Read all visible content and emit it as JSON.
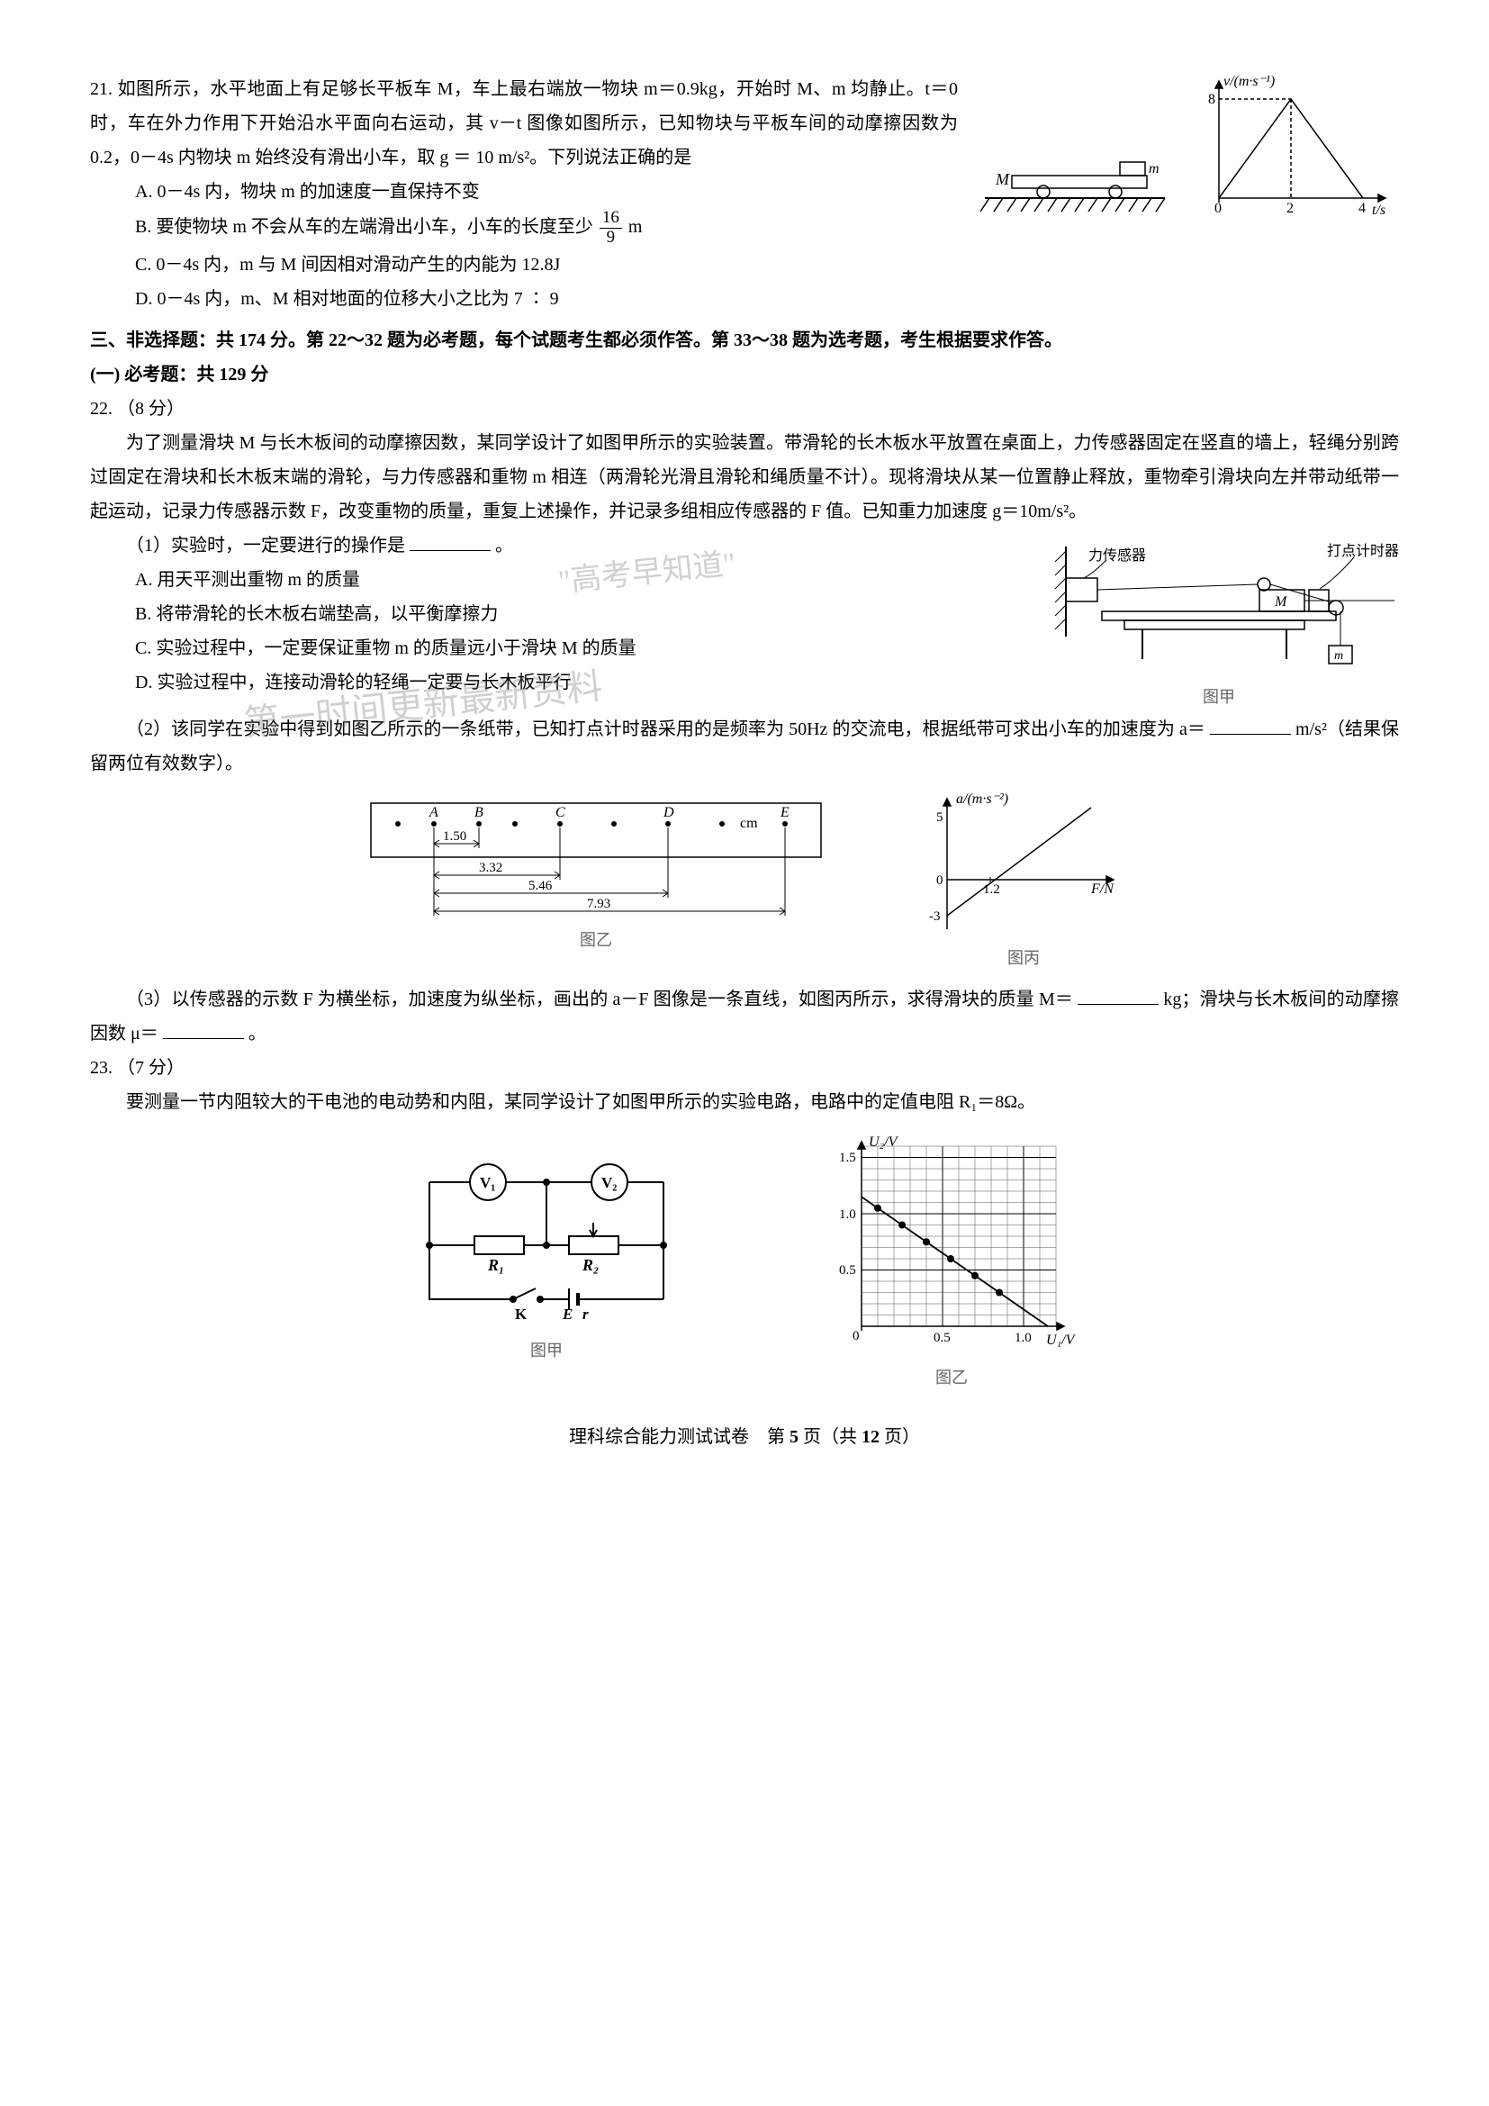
{
  "q21": {
    "num": "21.",
    "stem1": "如图所示，水平地面上有足够长平板车 M，车上最右端放一物块 m＝0.9kg，开始时 M、m 均静止。t＝0时，车在外力作用下开始沿水平面向右运动，其 v－t 图像如图所示，已知物块与平板车间的动摩擦因数为 0.2，0－4s 内物块 m 始终没有滑出小车，取 g ＝ 10 m/s²。下列说法正确的是",
    "opts": {
      "A": "A. 0－4s 内，物块 m 的加速度一直保持不变",
      "B_pre": "B. 要使物块 m 不会从车的左端滑出小车，小车的长度至少",
      "B_frac_num": "16",
      "B_frac_den": "9",
      "B_tail": " m",
      "C": "C. 0－4s 内，m 与 M 间因相对滑动产生的内能为 12.8J",
      "D": "D. 0－4s 内，m、M 相对地面的位移大小之比为 7 ∶ 9"
    },
    "diagram_cart": {
      "M": "M",
      "m": "m"
    },
    "chart": {
      "type": "line",
      "xlabel": "t/s",
      "ylabel": "v/(m·s⁻¹)",
      "x_ticks": [
        "0",
        "2",
        "4"
      ],
      "y_ticks": [
        "8"
      ],
      "points": [
        [
          0,
          0
        ],
        [
          2,
          8
        ],
        [
          4,
          0
        ]
      ],
      "xlim": [
        0,
        5
      ],
      "ylim": [
        0,
        9
      ],
      "line_color": "#000000",
      "axis_color": "#000000",
      "dash_color": "#000000",
      "background": "#ffffff"
    }
  },
  "section3": {
    "title": "三、非选择题：共 174 分。第 22～32 题为必考题，每个试题考生都必须作答。第 33～38 题为选考题，考生根据要求作答。",
    "sub": "(一) 必考题：共 129 分"
  },
  "q22": {
    "num": "22.",
    "points": "（8 分）",
    "p1": "为了测量滑块 M 与长木板间的动摩擦因数，某同学设计了如图甲所示的实验装置。带滑轮的长木板水平放置在桌面上，力传感器固定在竖直的墙上，轻绳分别跨过固定在滑块和长木板末端的滑轮，与力传感器和重物 m 相连（两滑轮光滑且滑轮和绳质量不计）。现将滑块从某一位置静止释放，重物牵引滑块向左并带动纸带一起运动，记录力传感器示数 F，改变重物的质量，重复上述操作，并记录多组相应传感器的 F 值。已知重力加速度 g＝10m/s²。",
    "s1_label": "（1）实验时，一定要进行的操作是",
    "s1_tail": "。",
    "opts": {
      "A": "A. 用天平测出重物 m 的质量",
      "B": "B. 将带滑轮的长木板右端垫高，以平衡摩擦力",
      "C": "C. 实验过程中，一定要保证重物 m 的质量远小于滑块 M 的质量",
      "D": "D. 实验过程中，连接动滑轮的轻绳一定要与长木板平行"
    },
    "s2": "（2）该同学在实验中得到如图乙所示的一条纸带，已知打点计时器采用的是频率为 50Hz 的交流电，根据纸带可求出小车的加速度为 a＝",
    "s2_tail": " m/s²（结果保留两位有效数字）。",
    "tape": {
      "labels": [
        "A",
        "B",
        "C",
        "D",
        "E"
      ],
      "unit": "cm",
      "d_AB": "1.50",
      "d_AC": "3.32",
      "d_AD": "5.46",
      "d_AE": "7.93",
      "caption": "图乙",
      "line_color": "#000000"
    },
    "aF_chart": {
      "type": "line",
      "xlabel": "F/N",
      "ylabel": "a/(m·s⁻²)",
      "x_ticks": [
        "1.2"
      ],
      "y_ticks": [
        "0",
        "-3",
        "5"
      ],
      "line_start": [
        0,
        -3
      ],
      "line_end": [
        3.2,
        5
      ],
      "caption": "图丙",
      "line_color": "#000000",
      "axis_color": "#000000"
    },
    "s3_a": "（3）以传感器的示数 F 为横坐标，加速度为纵坐标，画出的 a－F 图像是一条直线，如图丙所示，求得滑块的质量 M＝",
    "s3_b": " kg；滑块与长木板间的动摩擦因数 μ＝",
    "s3_c": "。",
    "apparatus": {
      "sensor": "力传感器",
      "timer": "打点计时器",
      "M": "M",
      "m": "m",
      "caption": "图甲"
    }
  },
  "q23": {
    "num": "23.",
    "points": "（7 分）",
    "p1": "要测量一节内阻较大的干电池的电动势和内阻，某同学设计了如图甲所示的实验电路，电路中的定值电阻 R₁＝8Ω。",
    "circuit": {
      "V1": "V₁",
      "V2": "V₂",
      "R1": "R₁",
      "R2": "R₂",
      "K": "K",
      "E": "E",
      "r": "r",
      "caption": "图甲",
      "line_color": "#000000"
    },
    "graph": {
      "type": "scatter+line",
      "xlabel": "U₁/V",
      "ylabel": "U₂/V",
      "xlim": [
        0,
        1.2
      ],
      "ylim": [
        0,
        1.6
      ],
      "x_ticks": [
        "0",
        "0.5",
        "1.0"
      ],
      "y_ticks": [
        "0",
        "0.5",
        "1.0",
        "1.5"
      ],
      "grid_minor": 0.1,
      "points": [
        [
          0.1,
          1.05
        ],
        [
          0.25,
          0.9
        ],
        [
          0.4,
          0.75
        ],
        [
          0.55,
          0.6
        ],
        [
          0.7,
          0.45
        ],
        [
          0.85,
          0.3
        ]
      ],
      "line_start": [
        0,
        1.15
      ],
      "line_end": [
        1.15,
        0
      ],
      "caption": "图乙",
      "line_color": "#000000",
      "grid_color": "#555555",
      "point_color": "#000000"
    }
  },
  "watermarks": {
    "w1": "\"高考早知道\"",
    "w2": "第一时间更新最新资料"
  },
  "footer": {
    "text_a": "理科综合能力测试试卷　第 ",
    "page": "5",
    "text_b": " 页（共 ",
    "total": "12",
    "text_c": " 页）"
  }
}
